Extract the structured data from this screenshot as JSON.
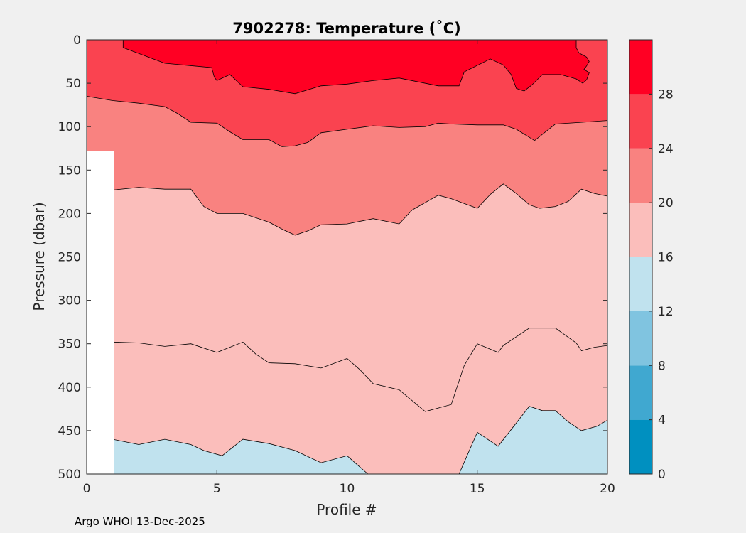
{
  "chart_data": {
    "type": "filled-contour",
    "title": "7902278:  Temperature (˚C)",
    "xlabel": "Profile #",
    "ylabel": "Pressure (dbar)",
    "xlim": [
      0,
      20
    ],
    "ylim": [
      0,
      500
    ],
    "y_reversed": true,
    "xticks": [
      "0",
      "5",
      "10",
      "15",
      "20"
    ],
    "yticks": [
      "0",
      "50",
      "100",
      "150",
      "200",
      "250",
      "300",
      "350",
      "400",
      "450",
      "500"
    ],
    "colorbar": {
      "range": [
        0,
        32
      ],
      "ticks": [
        "0",
        "4",
        "8",
        "12",
        "16",
        "20",
        "24",
        "28"
      ],
      "levels": [
        {
          "from": 0,
          "to": 4,
          "color": "#0090c0"
        },
        {
          "from": 4,
          "to": 8,
          "color": "#40a8d0"
        },
        {
          "from": 8,
          "to": 12,
          "color": "#80c4e0"
        },
        {
          "from": 12,
          "to": 16,
          "color": "#c0e2ee"
        },
        {
          "from": 16,
          "to": 20,
          "color": "#fbbebb"
        },
        {
          "from": 20,
          "to": 24,
          "color": "#f98280"
        },
        {
          "from": 24,
          "to": 28,
          "color": "#fa4350"
        },
        {
          "from": 28,
          "to": 32,
          "color": "#ff0023"
        }
      ]
    },
    "no_data_region": {
      "x_to": 1.05,
      "y_from": 128
    },
    "regions": [
      {
        "name": "band-16-20",
        "color": "#fbbebb",
        "points": [
          [
            0,
            0
          ],
          [
            20,
            0
          ],
          [
            20,
            500
          ],
          [
            0,
            500
          ]
        ]
      },
      {
        "name": "band-12-16",
        "color": "#c0e2ee",
        "points": [
          [
            1,
            460
          ],
          [
            2,
            466
          ],
          [
            3,
            460
          ],
          [
            4,
            466
          ],
          [
            4.5,
            473
          ],
          [
            5.2,
            479
          ],
          [
            6,
            460
          ],
          [
            7,
            465
          ],
          [
            8,
            473
          ],
          [
            9,
            487
          ],
          [
            10,
            479
          ],
          [
            10.8,
            500
          ],
          [
            1,
            500
          ]
        ]
      },
      {
        "name": "band-12-16-right",
        "color": "#c0e2ee",
        "points": [
          [
            14.3,
            500
          ],
          [
            15,
            452
          ],
          [
            15.8,
            468
          ],
          [
            17,
            422
          ],
          [
            17.5,
            427
          ],
          [
            18,
            427
          ],
          [
            18.5,
            440
          ],
          [
            19,
            450
          ],
          [
            19.6,
            445
          ],
          [
            20,
            438
          ],
          [
            20,
            500
          ]
        ]
      },
      {
        "name": "band-20-24",
        "color": "#f98280",
        "points": [
          [
            0,
            0
          ],
          [
            20,
            0
          ],
          [
            20,
            180
          ],
          [
            19.5,
            177
          ],
          [
            19,
            172
          ],
          [
            18.5,
            186
          ],
          [
            18,
            192
          ],
          [
            17.4,
            194
          ],
          [
            17,
            190
          ],
          [
            16.5,
            177
          ],
          [
            16,
            166
          ],
          [
            15.5,
            178
          ],
          [
            15,
            194
          ],
          [
            14,
            183
          ],
          [
            13.5,
            179
          ],
          [
            12.5,
            196
          ],
          [
            12,
            212
          ],
          [
            11,
            206
          ],
          [
            10,
            212
          ],
          [
            9,
            213
          ],
          [
            8.5,
            220
          ],
          [
            8,
            225
          ],
          [
            7.5,
            218
          ],
          [
            7,
            210
          ],
          [
            6,
            200
          ],
          [
            5,
            200
          ],
          [
            4.5,
            192
          ],
          [
            4,
            172
          ],
          [
            3,
            172
          ],
          [
            2,
            170
          ],
          [
            1,
            173
          ],
          [
            1,
            128
          ],
          [
            0,
            128
          ]
        ]
      },
      {
        "name": "band-24-28",
        "color": "#fa4350",
        "points": [
          [
            0,
            0
          ],
          [
            20,
            0
          ],
          [
            20,
            93
          ],
          [
            19,
            95
          ],
          [
            18,
            97
          ],
          [
            17.2,
            116
          ],
          [
            16.5,
            103
          ],
          [
            16,
            98
          ],
          [
            15,
            98
          ],
          [
            14,
            97
          ],
          [
            13.5,
            96
          ],
          [
            13,
            100
          ],
          [
            12,
            101
          ],
          [
            11,
            99
          ],
          [
            10,
            103
          ],
          [
            9,
            107
          ],
          [
            8.5,
            118
          ],
          [
            8,
            122
          ],
          [
            7.5,
            123
          ],
          [
            7,
            115
          ],
          [
            6,
            115
          ],
          [
            5.5,
            106
          ],
          [
            5,
            96
          ],
          [
            4,
            95
          ],
          [
            3.5,
            85
          ],
          [
            3,
            77
          ],
          [
            2,
            73
          ],
          [
            1,
            70
          ],
          [
            0,
            65
          ]
        ]
      },
      {
        "name": "band-28-32",
        "color": "#ff0023",
        "points": [
          [
            1.4,
            0
          ],
          [
            18.8,
            0
          ],
          [
            18.8,
            9
          ],
          [
            18.9,
            15
          ],
          [
            19.2,
            20
          ],
          [
            19.3,
            25
          ],
          [
            19.2,
            30
          ],
          [
            19.1,
            34
          ],
          [
            19.3,
            38
          ],
          [
            19.2,
            46
          ],
          [
            19.05,
            50
          ],
          [
            18.8,
            45
          ],
          [
            18.2,
            40
          ],
          [
            17.5,
            40
          ],
          [
            17.1,
            52
          ],
          [
            16.8,
            59
          ],
          [
            16.5,
            56
          ],
          [
            16.3,
            40
          ],
          [
            16,
            29
          ],
          [
            15.5,
            22
          ],
          [
            14.5,
            37
          ],
          [
            14.3,
            53
          ],
          [
            13.5,
            53
          ],
          [
            12,
            44
          ],
          [
            11,
            47
          ],
          [
            10,
            51
          ],
          [
            9,
            53
          ],
          [
            8,
            62
          ],
          [
            7,
            57
          ],
          [
            6,
            54
          ],
          [
            5.5,
            40
          ],
          [
            5,
            47
          ],
          [
            4.9,
            43
          ],
          [
            4.8,
            32
          ],
          [
            3,
            27
          ],
          [
            1.4,
            9
          ]
        ]
      }
    ],
    "contours": [
      {
        "level": 16,
        "points": [
          [
            1,
            460
          ],
          [
            2,
            466
          ],
          [
            3,
            460
          ],
          [
            4,
            466
          ],
          [
            4.5,
            473
          ],
          [
            5.2,
            479
          ],
          [
            6,
            460
          ],
          [
            7,
            465
          ],
          [
            8,
            473
          ],
          [
            9,
            487
          ],
          [
            10,
            479
          ],
          [
            10.8,
            500
          ]
        ]
      },
      {
        "level": 16,
        "points": [
          [
            14.3,
            500
          ],
          [
            15,
            452
          ],
          [
            15.8,
            468
          ],
          [
            17,
            422
          ],
          [
            17.5,
            427
          ],
          [
            18,
            427
          ],
          [
            18.5,
            440
          ],
          [
            19,
            450
          ],
          [
            19.6,
            445
          ],
          [
            20,
            438
          ]
        ]
      },
      {
        "level": 18,
        "points": [
          [
            1,
            348
          ],
          [
            2,
            349
          ],
          [
            3,
            353
          ],
          [
            4,
            350
          ],
          [
            5,
            360
          ],
          [
            6,
            348
          ],
          [
            6.5,
            362
          ],
          [
            7,
            372
          ],
          [
            8,
            373
          ],
          [
            9,
            378
          ],
          [
            10,
            367
          ],
          [
            10.5,
            380
          ],
          [
            11,
            396
          ],
          [
            12,
            403
          ],
          [
            13,
            428
          ],
          [
            14,
            420
          ],
          [
            14.5,
            375
          ],
          [
            15,
            350
          ],
          [
            15.8,
            360
          ],
          [
            16,
            352
          ],
          [
            17,
            332
          ],
          [
            18,
            332
          ],
          [
            18.8,
            349
          ],
          [
            19,
            358
          ],
          [
            19.5,
            354
          ],
          [
            20,
            352
          ]
        ]
      },
      {
        "level": 20,
        "points": [
          [
            1,
            173
          ],
          [
            2,
            170
          ],
          [
            3,
            172
          ],
          [
            4,
            172
          ],
          [
            4.5,
            192
          ],
          [
            5,
            200
          ],
          [
            6,
            200
          ],
          [
            7,
            210
          ],
          [
            7.5,
            218
          ],
          [
            8,
            225
          ],
          [
            8.5,
            220
          ],
          [
            9,
            213
          ],
          [
            10,
            212
          ],
          [
            11,
            206
          ],
          [
            12,
            212
          ],
          [
            12.5,
            196
          ],
          [
            13.5,
            179
          ],
          [
            14,
            183
          ],
          [
            15,
            194
          ],
          [
            15.5,
            178
          ],
          [
            16,
            166
          ],
          [
            16.5,
            177
          ],
          [
            17,
            190
          ],
          [
            17.4,
            194
          ],
          [
            18,
            192
          ],
          [
            18.5,
            186
          ],
          [
            19,
            172
          ],
          [
            19.5,
            177
          ],
          [
            20,
            180
          ]
        ]
      },
      {
        "level": 24,
        "points": [
          [
            0,
            65
          ],
          [
            1,
            70
          ],
          [
            2,
            73
          ],
          [
            3,
            77
          ],
          [
            3.5,
            85
          ],
          [
            4,
            95
          ],
          [
            5,
            96
          ],
          [
            5.5,
            106
          ],
          [
            6,
            115
          ],
          [
            7,
            115
          ],
          [
            7.5,
            123
          ],
          [
            8,
            122
          ],
          [
            8.5,
            118
          ],
          [
            9,
            107
          ],
          [
            10,
            103
          ],
          [
            11,
            99
          ],
          [
            12,
            101
          ],
          [
            13,
            100
          ],
          [
            13.5,
            96
          ],
          [
            14,
            97
          ],
          [
            15,
            98
          ],
          [
            16,
            98
          ],
          [
            16.5,
            103
          ],
          [
            17.2,
            116
          ],
          [
            18,
            97
          ],
          [
            19,
            95
          ],
          [
            20,
            93
          ]
        ]
      },
      {
        "level": 28,
        "points": [
          [
            1.4,
            0
          ],
          [
            1.4,
            9
          ],
          [
            3,
            27
          ],
          [
            4.8,
            32
          ],
          [
            4.9,
            43
          ],
          [
            5,
            47
          ],
          [
            5.5,
            40
          ],
          [
            6,
            54
          ],
          [
            7,
            57
          ],
          [
            8,
            62
          ],
          [
            9,
            53
          ],
          [
            10,
            51
          ],
          [
            11,
            47
          ],
          [
            12,
            44
          ],
          [
            13.5,
            53
          ],
          [
            14.3,
            53
          ],
          [
            14.5,
            37
          ],
          [
            15.5,
            22
          ],
          [
            16,
            29
          ],
          [
            16.3,
            40
          ],
          [
            16.5,
            56
          ],
          [
            16.8,
            59
          ],
          [
            17.1,
            52
          ],
          [
            17.5,
            40
          ],
          [
            18.2,
            40
          ],
          [
            18.8,
            45
          ],
          [
            19.05,
            50
          ],
          [
            19.2,
            46
          ],
          [
            19.3,
            38
          ],
          [
            19.1,
            34
          ],
          [
            19.2,
            30
          ],
          [
            19.3,
            25
          ],
          [
            19.2,
            20
          ],
          [
            18.9,
            15
          ],
          [
            18.8,
            9
          ],
          [
            18.8,
            0
          ]
        ]
      }
    ]
  },
  "footer": {
    "text": "Argo WHOI 13-Dec-2025"
  }
}
